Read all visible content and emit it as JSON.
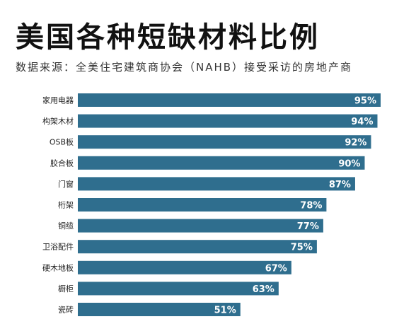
{
  "colors": {
    "bar": "#2f6e8e",
    "background": "#ffffff",
    "text": "#111111"
  },
  "chart_data": {
    "type": "bar",
    "orientation": "horizontal",
    "title": "美国各种短缺材料比例",
    "subtitle": "数据来源：全美住宅建筑商协会（NAHB）接受采访的房地产商",
    "categories": [
      "家用电器",
      "构架木材",
      "OSB板",
      "胶合板",
      "门窗",
      "桁架",
      "铜缆",
      "卫浴配件",
      "硬木地板",
      "橱柜",
      "瓷砖"
    ],
    "values": [
      95,
      94,
      92,
      90,
      87,
      78,
      77,
      75,
      67,
      63,
      51
    ],
    "value_labels": [
      "95%",
      "94%",
      "92%",
      "90%",
      "87%",
      "78%",
      "77%",
      "75%",
      "67%",
      "63%",
      "51%"
    ],
    "xlim": [
      0,
      100
    ],
    "grid": false,
    "legend": "none"
  }
}
